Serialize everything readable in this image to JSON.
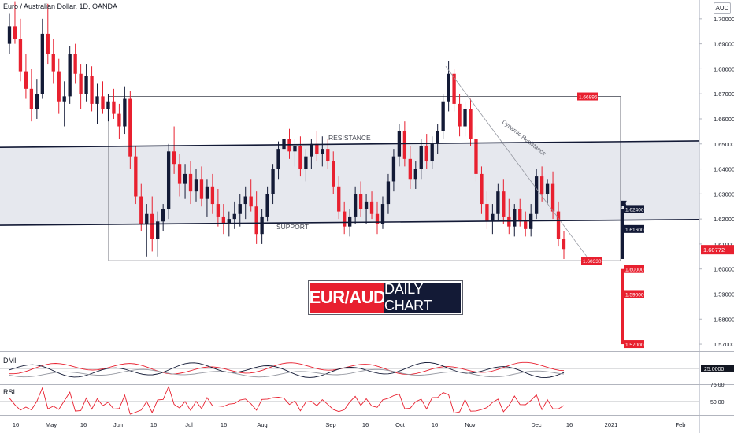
{
  "header": {
    "ticker_text": "Euro / Australian Dollar, 1D, OANDA",
    "currency_badge": "AUD"
  },
  "title_banner": {
    "pair": "EUR/AUD",
    "subtitle": "DAILY CHART"
  },
  "colors": {
    "up": "#131a36",
    "down": "#e8202f",
    "zone_fill": "#e6e8ee",
    "line": "#131a36",
    "accent_red": "#e8202f"
  },
  "chart_data": {
    "type": "candlestick",
    "symbol": "Euro / Australian Dollar, 1D, OANDA",
    "y_axis": {
      "ticks": [
        "1.70000",
        "1.69000",
        "1.68000",
        "1.67000",
        "1.66000",
        "1.65000",
        "1.64000",
        "1.63000",
        "1.62000",
        "1.61000",
        "1.60000",
        "1.59000",
        "1.58000",
        "1.57000"
      ],
      "ylim": [
        1.5675,
        1.7075
      ]
    },
    "x_axis": {
      "ticks": [
        "16",
        "May",
        "16",
        "Jun",
        "16",
        "Jul",
        "16",
        "Aug",
        "Sep",
        "16",
        "Oct",
        "16",
        "Nov",
        "Dec",
        "16",
        "2021",
        "Feb"
      ]
    },
    "drawn_lines": {
      "resistance_label": "RESISTANCE",
      "support_label": "SUPPORT",
      "dynamic_label": "Dynamic Resistance"
    },
    "price_labels": {
      "range_high": "1.66895",
      "range_low": "1.60330",
      "target_1": "1.62400",
      "target_2": "1.61600",
      "target_3": "1.60000",
      "target_4": "1.59000",
      "target_5": "1.57000",
      "last_price": "1.60772"
    },
    "range_box": {
      "high": 1.66895,
      "low": 1.6033
    },
    "channel": {
      "resistance": [
        [
          0,
          1.6486
        ],
        [
          1,
          1.6512
        ]
      ],
      "support": [
        [
          0,
          1.6175
        ],
        [
          1,
          1.6198
        ]
      ]
    },
    "candles": [
      [
        1.69,
        1.702,
        1.686,
        1.697
      ],
      [
        1.697,
        1.707,
        1.69,
        1.692
      ],
      [
        1.692,
        1.7,
        1.675,
        1.679
      ],
      [
        1.679,
        1.686,
        1.668,
        1.672
      ],
      [
        1.672,
        1.68,
        1.659,
        1.664
      ],
      [
        1.664,
        1.676,
        1.66,
        1.67
      ],
      [
        1.67,
        1.7,
        1.668,
        1.694
      ],
      [
        1.694,
        1.706,
        1.682,
        1.686
      ],
      [
        1.686,
        1.692,
        1.674,
        1.679
      ],
      [
        1.679,
        1.684,
        1.662,
        1.667
      ],
      [
        1.667,
        1.675,
        1.657,
        1.669
      ],
      [
        1.669,
        1.689,
        1.666,
        1.686
      ],
      [
        1.686,
        1.69,
        1.674,
        1.678
      ],
      [
        1.678,
        1.682,
        1.664,
        1.67
      ],
      [
        1.67,
        1.682,
        1.667,
        1.677
      ],
      [
        1.677,
        1.681,
        1.663,
        1.666
      ],
      [
        1.666,
        1.674,
        1.658,
        1.669
      ],
      [
        1.669,
        1.675,
        1.662,
        1.664
      ],
      [
        1.664,
        1.67,
        1.659,
        1.667
      ],
      [
        1.667,
        1.672,
        1.66,
        1.662
      ],
      [
        1.662,
        1.666,
        1.652,
        1.657
      ],
      [
        1.657,
        1.673,
        1.654,
        1.668
      ],
      [
        1.668,
        1.671,
        1.64,
        1.645
      ],
      [
        1.645,
        1.649,
        1.626,
        1.629
      ],
      [
        1.629,
        1.634,
        1.615,
        1.618
      ],
      [
        1.618,
        1.626,
        1.605,
        1.622
      ],
      [
        1.622,
        1.629,
        1.607,
        1.612
      ],
      [
        1.612,
        1.623,
        1.605,
        1.619
      ],
      [
        1.619,
        1.626,
        1.615,
        1.624
      ],
      [
        1.624,
        1.65,
        1.62,
        1.647
      ],
      [
        1.647,
        1.657,
        1.638,
        1.642
      ],
      [
        1.642,
        1.646,
        1.629,
        1.634
      ],
      [
        1.634,
        1.642,
        1.628,
        1.638
      ],
      [
        1.638,
        1.643,
        1.626,
        1.631
      ],
      [
        1.631,
        1.64,
        1.627,
        1.636
      ],
      [
        1.636,
        1.641,
        1.625,
        1.628
      ],
      [
        1.628,
        1.636,
        1.621,
        1.633
      ],
      [
        1.633,
        1.638,
        1.622,
        1.626
      ],
      [
        1.626,
        1.632,
        1.617,
        1.621
      ],
      [
        1.621,
        1.626,
        1.614,
        1.618
      ],
      [
        1.618,
        1.623,
        1.613,
        1.62
      ],
      [
        1.62,
        1.627,
        1.616,
        1.622
      ],
      [
        1.622,
        1.63,
        1.617,
        1.626
      ],
      [
        1.626,
        1.633,
        1.62,
        1.629
      ],
      [
        1.629,
        1.636,
        1.623,
        1.625
      ],
      [
        1.625,
        1.631,
        1.61,
        1.614
      ],
      [
        1.614,
        1.624,
        1.61,
        1.621
      ],
      [
        1.621,
        1.633,
        1.619,
        1.63
      ],
      [
        1.63,
        1.642,
        1.626,
        1.64
      ],
      [
        1.64,
        1.651,
        1.636,
        1.648
      ],
      [
        1.648,
        1.655,
        1.643,
        1.652
      ],
      [
        1.652,
        1.656,
        1.644,
        1.647
      ],
      [
        1.647,
        1.652,
        1.641,
        1.649
      ],
      [
        1.649,
        1.653,
        1.637,
        1.64
      ],
      [
        1.64,
        1.648,
        1.635,
        1.645
      ],
      [
        1.645,
        1.652,
        1.64,
        1.65
      ],
      [
        1.65,
        1.655,
        1.643,
        1.646
      ],
      [
        1.646,
        1.653,
        1.641,
        1.648
      ],
      [
        1.648,
        1.652,
        1.64,
        1.643
      ],
      [
        1.643,
        1.647,
        1.63,
        1.633
      ],
      [
        1.633,
        1.637,
        1.62,
        1.623
      ],
      [
        1.623,
        1.627,
        1.614,
        1.617
      ],
      [
        1.617,
        1.624,
        1.613,
        1.621
      ],
      [
        1.621,
        1.633,
        1.618,
        1.63
      ],
      [
        1.63,
        1.635,
        1.621,
        1.624
      ],
      [
        1.624,
        1.63,
        1.618,
        1.627
      ],
      [
        1.627,
        1.631,
        1.62,
        1.622
      ],
      [
        1.622,
        1.627,
        1.614,
        1.618
      ],
      [
        1.618,
        1.629,
        1.616,
        1.626
      ],
      [
        1.626,
        1.638,
        1.622,
        1.635
      ],
      [
        1.635,
        1.648,
        1.631,
        1.645
      ],
      [
        1.645,
        1.658,
        1.641,
        1.655
      ],
      [
        1.655,
        1.659,
        1.641,
        1.644
      ],
      [
        1.644,
        1.649,
        1.632,
        1.636
      ],
      [
        1.636,
        1.643,
        1.632,
        1.64
      ],
      [
        1.64,
        1.652,
        1.636,
        1.649
      ],
      [
        1.649,
        1.654,
        1.64,
        1.643
      ],
      [
        1.643,
        1.653,
        1.64,
        1.65
      ],
      [
        1.65,
        1.658,
        1.646,
        1.655
      ],
      [
        1.655,
        1.67,
        1.652,
        1.667
      ],
      [
        1.667,
        1.683,
        1.663,
        1.678
      ],
      [
        1.678,
        1.68,
        1.663,
        1.666
      ],
      [
        1.666,
        1.67,
        1.653,
        1.657
      ],
      [
        1.657,
        1.667,
        1.653,
        1.664
      ],
      [
        1.664,
        1.668,
        1.649,
        1.652
      ],
      [
        1.652,
        1.657,
        1.635,
        1.638
      ],
      [
        1.638,
        1.641,
        1.622,
        1.626
      ],
      [
        1.626,
        1.631,
        1.616,
        1.619
      ],
      [
        1.619,
        1.626,
        1.614,
        1.622
      ],
      [
        1.622,
        1.634,
        1.619,
        1.631
      ],
      [
        1.631,
        1.636,
        1.618,
        1.621
      ],
      [
        1.621,
        1.628,
        1.614,
        1.617
      ],
      [
        1.617,
        1.626,
        1.613,
        1.624
      ],
      [
        1.624,
        1.628,
        1.617,
        1.619
      ],
      [
        1.619,
        1.623,
        1.613,
        1.616
      ],
      [
        1.616,
        1.626,
        1.613,
        1.622
      ],
      [
        1.622,
        1.64,
        1.62,
        1.637
      ],
      [
        1.637,
        1.641,
        1.627,
        1.63
      ],
      [
        1.63,
        1.636,
        1.626,
        1.634
      ],
      [
        1.634,
        1.639,
        1.62,
        1.623
      ],
      [
        1.623,
        1.627,
        1.609,
        1.612
      ],
      [
        1.612,
        1.615,
        1.604,
        1.608
      ]
    ],
    "indicators": [
      {
        "name": "DMI",
        "value_label": "25.0000"
      },
      {
        "name": "RSI",
        "levels": [
          "75.00",
          "50.00"
        ]
      }
    ]
  }
}
